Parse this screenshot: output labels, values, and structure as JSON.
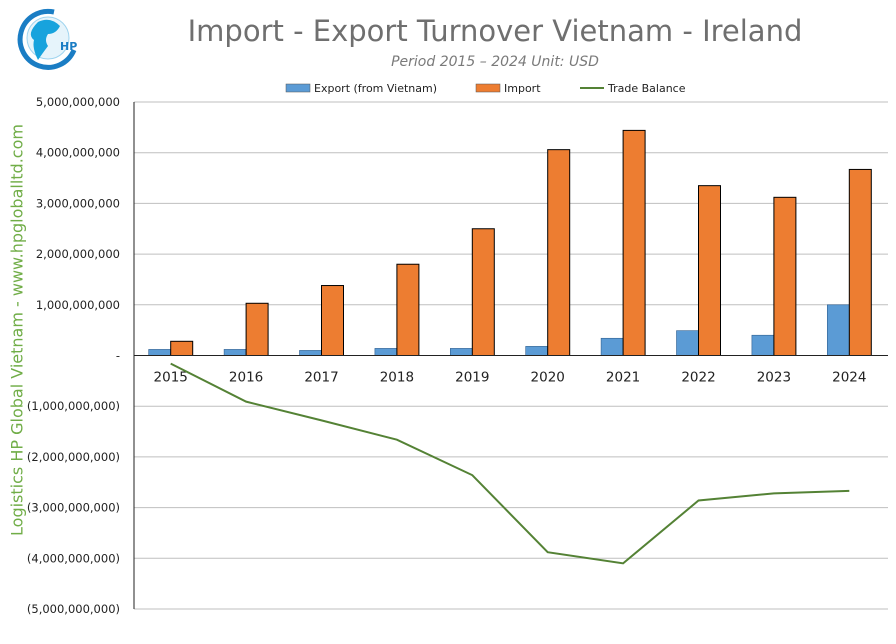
{
  "logo": {
    "text": "HP"
  },
  "side_text": "Logistics HP Global Vietnam - www.hpgloballtd.com",
  "chart_data": {
    "type": "bar",
    "title": "Import - Export Turnover Vietnam - Ireland",
    "subtitle": "Period 2015 – 2024  Unit: USD",
    "categories": [
      "2015",
      "2016",
      "2017",
      "2018",
      "2019",
      "2020",
      "2021",
      "2022",
      "2023",
      "2024"
    ],
    "series": [
      {
        "name": "Export (from Vietnam)",
        "type": "bar",
        "color": "#5b9bd5",
        "values": [
          120000000,
          120000000,
          100000000,
          140000000,
          140000000,
          180000000,
          340000000,
          490000000,
          400000000,
          1000000000
        ]
      },
      {
        "name": "Import",
        "type": "bar",
        "color": "#ed7d31",
        "values": [
          280000000,
          1030000000,
          1380000000,
          1800000000,
          2500000000,
          4060000000,
          4440000000,
          3350000000,
          3120000000,
          3670000000
        ]
      },
      {
        "name": "Trade Balance",
        "type": "line",
        "color": "#548235",
        "values": [
          -160000000,
          -910000000,
          -1280000000,
          -1660000000,
          -2360000000,
          -3880000000,
          -4100000000,
          -2860000000,
          -2720000000,
          -2670000000
        ]
      }
    ],
    "ylim": [
      -5000000000,
      5000000000
    ],
    "yticks": [
      5000000000,
      4000000000,
      3000000000,
      2000000000,
      1000000000,
      0,
      -1000000000,
      -2000000000,
      -3000000000,
      -4000000000,
      -5000000000
    ],
    "ytick_labels": [
      "5,000,000,000",
      "4,000,000,000",
      "3,000,000,000",
      "2,000,000,000",
      "1,000,000,000",
      "-",
      "(1,000,000,000)",
      "(2,000,000,000)",
      "(3,000,000,000)",
      "(4,000,000,000)",
      "(5,000,000,000)"
    ],
    "grid": true,
    "legend": "top"
  }
}
